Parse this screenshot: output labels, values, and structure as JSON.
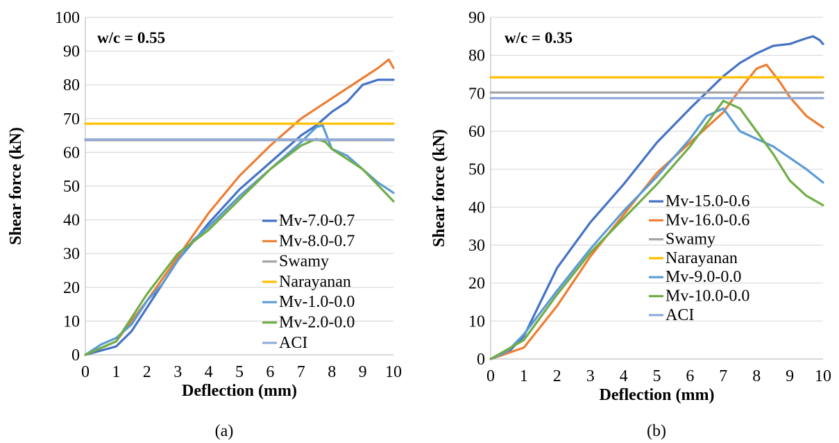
{
  "figure": {
    "captions": [
      "(a)",
      "(b)"
    ]
  },
  "chart_data": [
    {
      "type": "line",
      "title": "",
      "annotation": "w/c = 0.55",
      "xlabel": "Deflection (mm)",
      "ylabel": "Shear force (kN)",
      "xlim": [
        0,
        10
      ],
      "ylim": [
        0,
        100
      ],
      "xticks": [
        0,
        1,
        2,
        3,
        4,
        5,
        6,
        7,
        8,
        9,
        10
      ],
      "yticks": [
        0,
        10,
        20,
        30,
        40,
        50,
        60,
        70,
        80,
        90,
        100
      ],
      "grid": "horizontal",
      "legend": "bottom-right",
      "series": [
        {
          "name": "Mv-7.0-0.7",
          "color": "#4472C4",
          "x": [
            0,
            1,
            1.5,
            2,
            3,
            4,
            5,
            6,
            7,
            7.5,
            8,
            8.5,
            9,
            9.5,
            10
          ],
          "y": [
            0,
            2.5,
            7,
            14,
            28,
            39,
            49,
            57,
            65,
            68,
            72,
            75,
            80,
            81.5,
            81.5
          ]
        },
        {
          "name": "Mv-8.0-0.7",
          "color": "#ED7D31",
          "x": [
            0,
            1,
            2,
            3,
            4,
            5,
            6,
            7,
            8,
            9,
            9.5,
            9.85,
            10
          ],
          "y": [
            0,
            4,
            16,
            29,
            42,
            53,
            62,
            70,
            76,
            82,
            85,
            87.5,
            85
          ]
        },
        {
          "name": "Swamy",
          "color": "#A5A5A5",
          "x": [
            0,
            10
          ],
          "y": [
            63.6,
            63.6
          ]
        },
        {
          "name": "Narayanan",
          "color": "#FFC000",
          "x": [
            0,
            10
          ],
          "y": [
            68.5,
            68.5
          ]
        },
        {
          "name": "Mv-1.0-0.0",
          "color": "#5B9BD5",
          "x": [
            0,
            0.5,
            1,
            1.5,
            2,
            2.5,
            3,
            3.5,
            4,
            5,
            6,
            7,
            7.5,
            7.7,
            8,
            8.5,
            9,
            9.5,
            10
          ],
          "y": [
            0,
            3,
            5,
            9,
            16,
            21,
            28,
            34,
            38,
            47,
            55,
            63,
            67.5,
            68,
            61,
            59,
            55,
            51,
            48
          ]
        },
        {
          "name": "Mv-2.0-0.0",
          "color": "#70AD47",
          "x": [
            0,
            1,
            2,
            3,
            4,
            5,
            6,
            7,
            7.5,
            7.8,
            8,
            9,
            10
          ],
          "y": [
            0,
            4,
            18,
            30,
            37,
            46,
            55,
            62,
            64,
            63,
            61,
            55,
            45.5
          ]
        },
        {
          "name": "ACI",
          "color": "#8FAADC",
          "x": [
            0,
            10
          ],
          "y": [
            63.8,
            63.8
          ]
        }
      ]
    },
    {
      "type": "line",
      "title": "",
      "annotation": "w/c = 0.35",
      "xlabel": "Deflection (mm)",
      "ylabel": "Shear force (kN)",
      "xlim": [
        0,
        10
      ],
      "ylim": [
        0,
        90
      ],
      "xticks": [
        0,
        1,
        2,
        3,
        4,
        5,
        6,
        7,
        8,
        9,
        10
      ],
      "yticks": [
        0,
        10,
        20,
        30,
        40,
        50,
        60,
        70,
        80,
        90
      ],
      "grid": "horizontal",
      "legend": "bottom-right",
      "series": [
        {
          "name": "Mv-15.0-0.6",
          "color": "#4472C4",
          "x": [
            0,
            0.5,
            1,
            1.5,
            2,
            3,
            4,
            5,
            6,
            7,
            7.5,
            8,
            8.5,
            9,
            9.5,
            9.7,
            9.9,
            10
          ],
          "y": [
            0,
            1.5,
            6,
            15,
            24,
            36,
            46,
            57,
            66,
            74.5,
            78,
            80.5,
            82.5,
            83,
            84.5,
            85,
            84,
            83
          ]
        },
        {
          "name": "Mv-16.0-0.6",
          "color": "#ED7D31",
          "x": [
            0,
            1,
            2,
            3,
            4,
            5,
            6,
            7,
            7.5,
            8,
            8.3,
            8.7,
            9,
            9.5,
            10
          ],
          "y": [
            0,
            3,
            14,
            27,
            38,
            49,
            57,
            65,
            71,
            76.5,
            77.5,
            73,
            69,
            64,
            61
          ]
        },
        {
          "name": "Swamy",
          "color": "#A5A5A5",
          "x": [
            0,
            10
          ],
          "y": [
            70.2,
            70.2
          ]
        },
        {
          "name": "Narayanan",
          "color": "#FFC000",
          "x": [
            0,
            10
          ],
          "y": [
            74.2,
            74.2
          ]
        },
        {
          "name": "Mv-9.0-0.0",
          "color": "#5B9BD5",
          "x": [
            0,
            0.5,
            1,
            2,
            3,
            4,
            5,
            6,
            6.5,
            7,
            7.5,
            8,
            8.5,
            9,
            9.5,
            10
          ],
          "y": [
            0,
            2,
            6.5,
            18,
            29,
            39,
            48,
            58,
            64,
            66,
            60,
            58,
            56,
            53,
            50,
            46.5
          ]
        },
        {
          "name": "Mv-10.0-0.0",
          "color": "#70AD47",
          "x": [
            0,
            1,
            2,
            3,
            4,
            5,
            6,
            6.5,
            7,
            7.5,
            8,
            8.5,
            9,
            9.5,
            10
          ],
          "y": [
            0,
            5,
            17,
            28,
            37,
            46,
            56,
            62,
            68,
            66,
            60,
            54,
            47,
            43,
            40.5
          ]
        },
        {
          "name": "ACI",
          "color": "#8FAADC",
          "x": [
            0,
            10
          ],
          "y": [
            68.7,
            68.7
          ]
        }
      ]
    }
  ]
}
